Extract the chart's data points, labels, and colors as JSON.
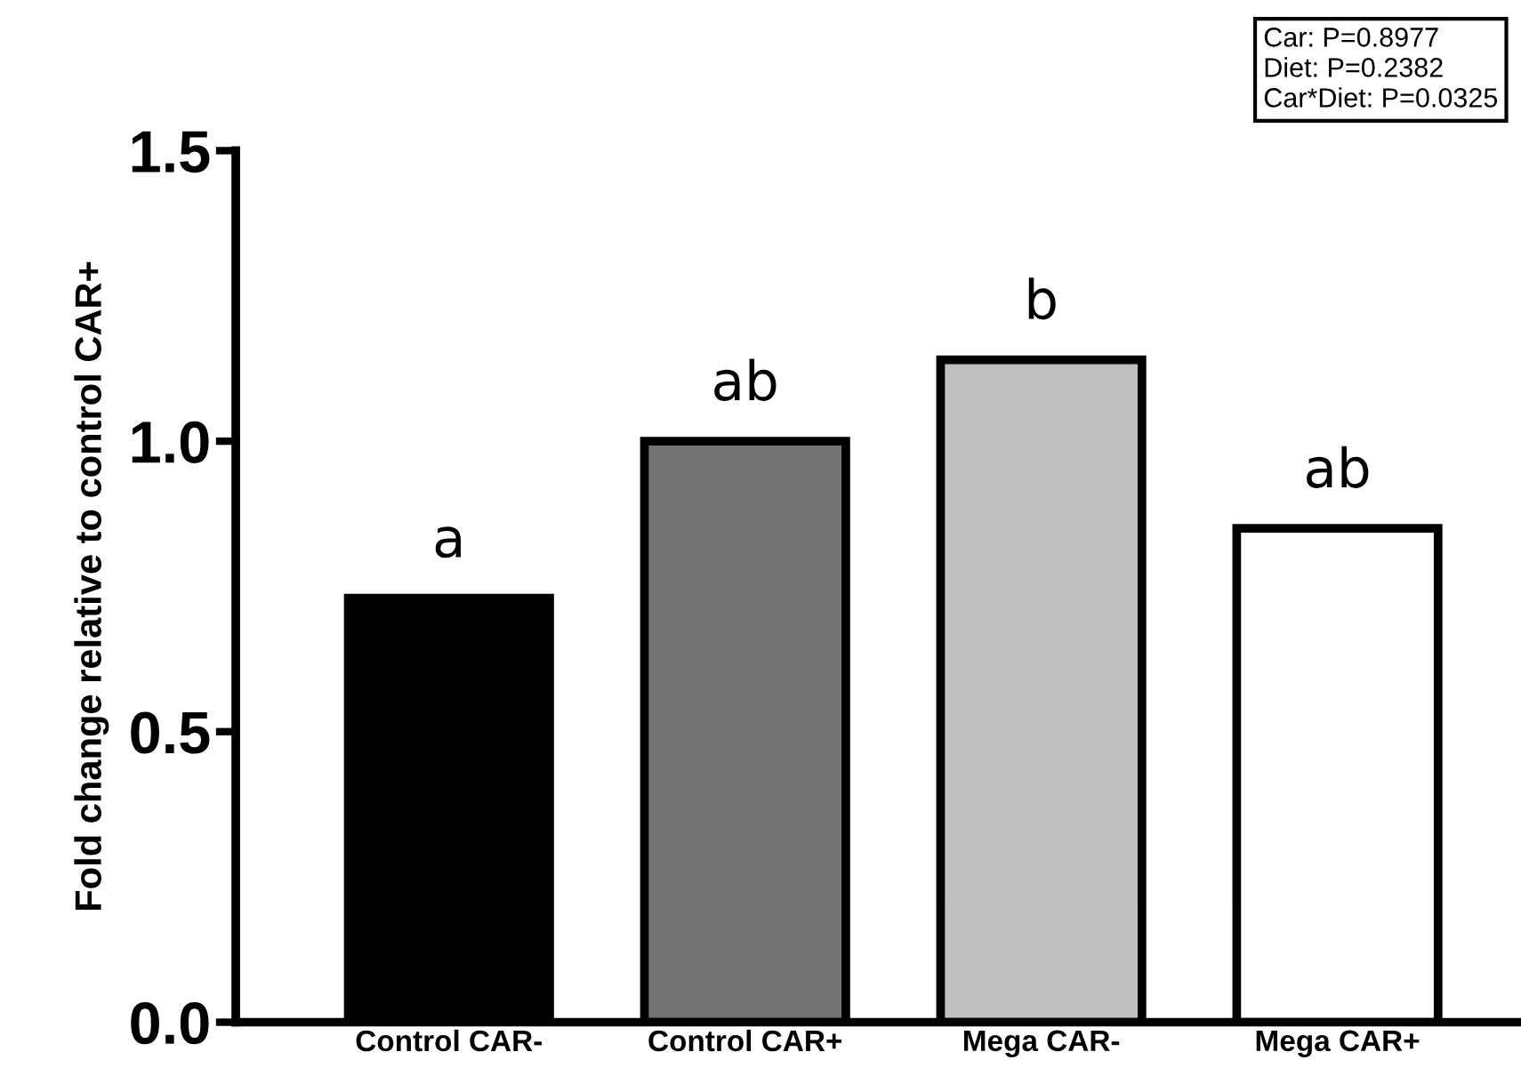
{
  "chart_data": {
    "type": "bar",
    "ylabel": "Fold change relative to control CAR+",
    "categories": [
      "Control CAR-",
      "Control CAR+",
      "Mega CAR-",
      "Mega CAR+"
    ],
    "values": [
      0.73,
      1.0,
      1.14,
      0.85
    ],
    "colors": [
      "#000000",
      "#737373",
      "#bfbfbf",
      "#ffffff"
    ],
    "ylim": [
      0,
      1.5
    ],
    "yticks": [
      {
        "value": 0,
        "label": "0.0"
      },
      0.5,
      {
        "value": 1,
        "label": "1.0"
      },
      1.5
    ],
    "grid": false,
    "legend": false,
    "annotations": [
      {
        "text": "a",
        "x": "Control CAR-",
        "y": 0.73
      },
      {
        "text": "ab",
        "x": "Control CAR+",
        "y": 1.0
      },
      {
        "text": "b",
        "x": "Mega CAR-",
        "y": 1.14
      },
      {
        "text": "ab",
        "x": "Mega CAR+",
        "y": 0.85
      },
      "Car: P=0.8977\nDiet: P=0.2382\nCar*Diet: P=0.0325"
    ]
  }
}
